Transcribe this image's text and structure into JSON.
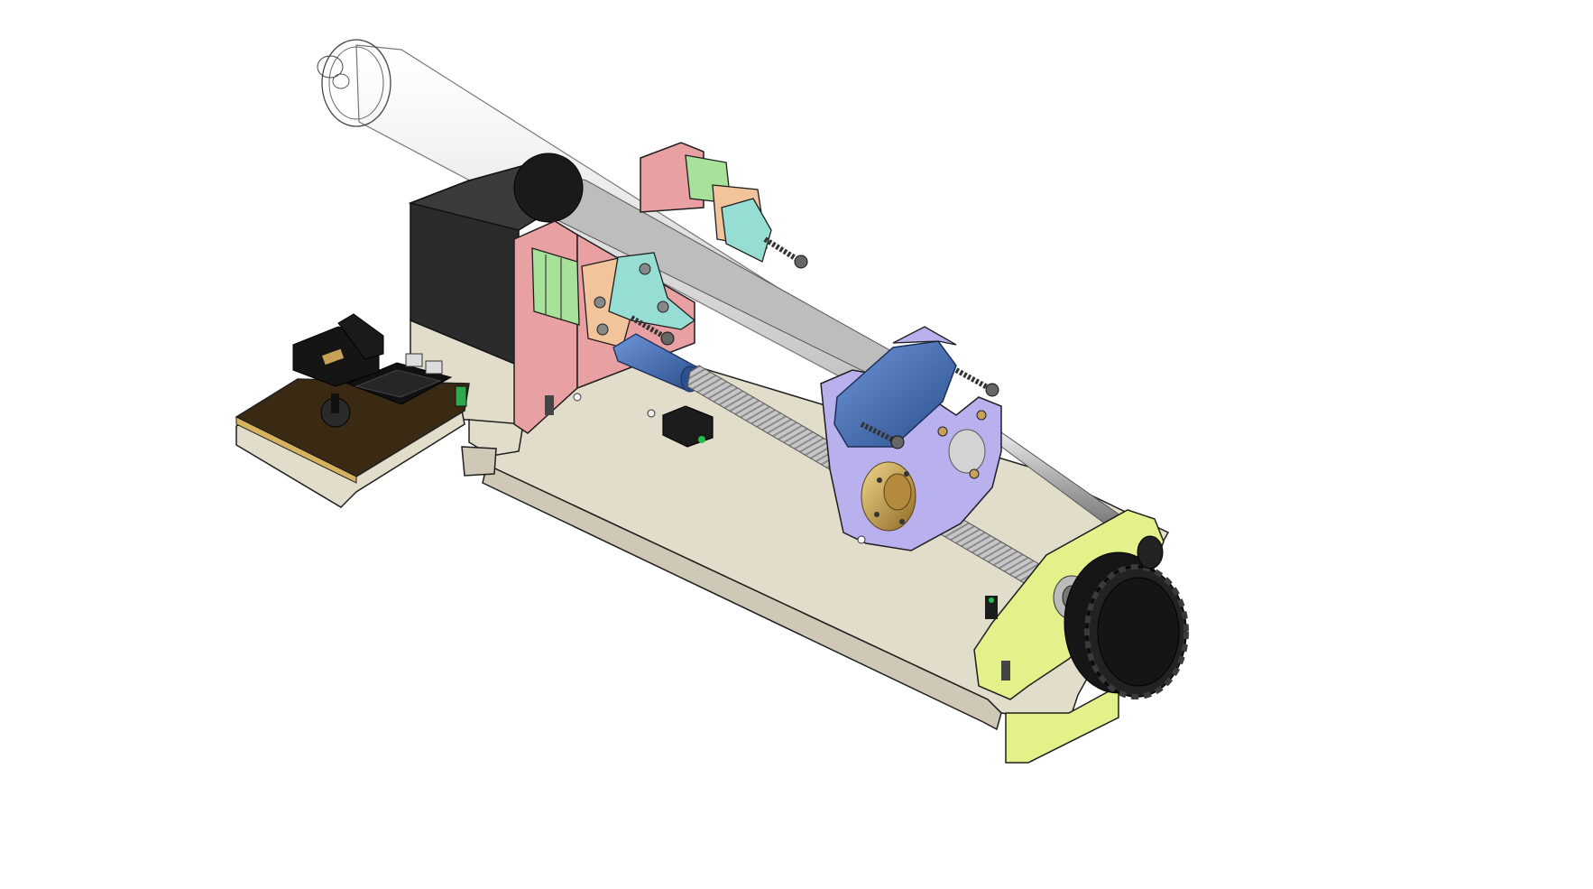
{
  "scene": {
    "description_type": "isometric CAD render",
    "background": "#ffffff",
    "outline": "#1e1e1e"
  },
  "colors": {
    "base_plate": "#e2dccb",
    "base_plate_side": "#cfc8b6",
    "motor": "#2b2b2b",
    "motor_side": "#3b3b3b",
    "pink_bracket": "#e9a0a2",
    "green_clamp": "#a8e29a",
    "orange_clamp": "#f2c49c",
    "cyan_clamp": "#96ddd3",
    "lavender_carriage": "#b9b0ee",
    "blue_plate": "#4a74d0",
    "blue_coupler": "#3f6fb5",
    "brass_nut": "#c9a25a",
    "yellow_bracket": "#e4f08a",
    "knob": "#161616",
    "syringe": "#d8d8d8",
    "pcb": "#3a2a14",
    "pcb_gold": "#d6b25e",
    "rod": "#c9c9c9",
    "leadscrew": "#bdbdbd"
  },
  "components": [
    {
      "name": "base-plate",
      "color_key": "base_plate"
    },
    {
      "name": "stepper-motor",
      "color_key": "motor"
    },
    {
      "name": "motor-bracket",
      "color_key": "pink_bracket"
    },
    {
      "name": "syringe-clamp-front",
      "color_key": "green_clamp"
    },
    {
      "name": "syringe-clamp-rear",
      "color_key": "green_clamp"
    },
    {
      "name": "syringe-barrel",
      "color_key": "syringe"
    },
    {
      "name": "shaft-coupler",
      "color_key": "blue_coupler"
    },
    {
      "name": "lead-screw",
      "color_key": "leadscrew"
    },
    {
      "name": "guide-rod",
      "color_key": "rod"
    },
    {
      "name": "pusher-carriage",
      "color_key": "lavender_carriage"
    },
    {
      "name": "plunger-holder",
      "color_key": "blue_plate"
    },
    {
      "name": "brass-lead-nut",
      "color_key": "brass_nut"
    },
    {
      "name": "end-bracket",
      "color_key": "yellow_bracket"
    },
    {
      "name": "thumb-knob",
      "color_key": "knob"
    },
    {
      "name": "controller-board",
      "color_key": "pcb"
    },
    {
      "name": "limit-switch",
      "color_key": "motor"
    }
  ]
}
